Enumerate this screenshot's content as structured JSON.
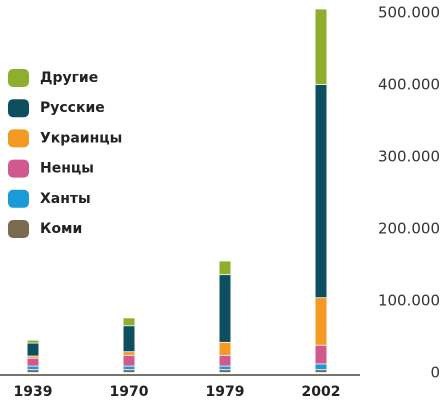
{
  "chart_data": {
    "type": "bar",
    "stacked": true,
    "categories": [
      "1939",
      "1970",
      "1979",
      "2002"
    ],
    "series": [
      {
        "name": "Коми",
        "color": "#7a6a50",
        "values": [
          4000,
          4000,
          4000,
          4000
        ]
      },
      {
        "name": "Ханты",
        "color": "#1a9ad6",
        "values": [
          5000,
          5000,
          5000,
          8000
        ]
      },
      {
        "name": "Ненцы",
        "color": "#d05a8e",
        "values": [
          11000,
          15000,
          15000,
          26000
        ]
      },
      {
        "name": "Украинцы",
        "color": "#f39a25",
        "values": [
          3000,
          5000,
          18000,
          66000
        ]
      },
      {
        "name": "Русские",
        "color": "#0d4f5f",
        "values": [
          18000,
          36000,
          94000,
          296000
        ]
      },
      {
        "name": "Другие",
        "color": "#8fae2e",
        "values": [
          4000,
          11000,
          19000,
          105000
        ]
      }
    ],
    "ylim": [
      0,
      500000
    ],
    "yticks": [
      0,
      {
        "value": 100000,
        "label": "100.000"
      },
      {
        "value": 200000,
        "label": "200.000"
      },
      {
        "value": 300000,
        "label": "300.000"
      },
      {
        "value": 400000,
        "label": "400.000"
      },
      {
        "value": 500000,
        "label": "500.000"
      }
    ],
    "legend": "left",
    "grid": false
  }
}
